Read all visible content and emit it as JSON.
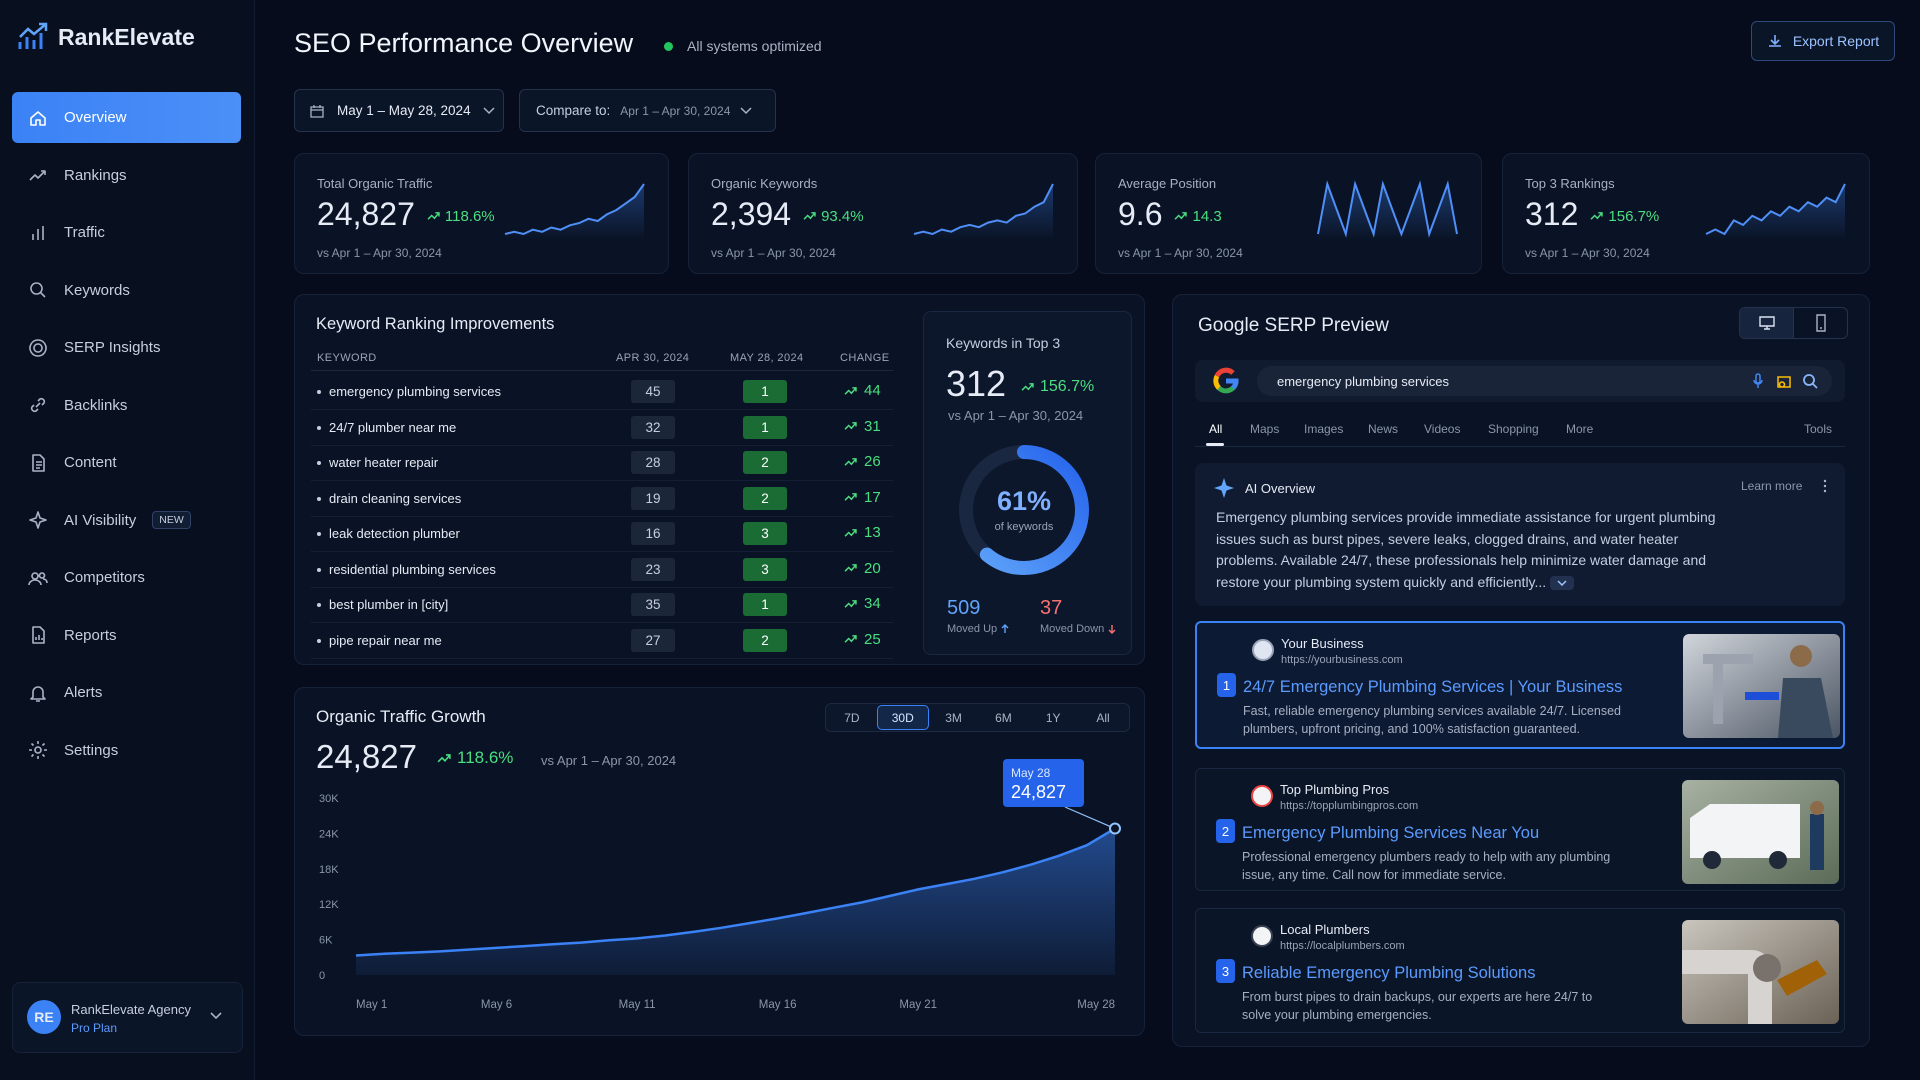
{
  "sidebar": {
    "brand": "RankElevate",
    "nav": [
      {
        "label": "Overview"
      },
      {
        "label": "Rankings"
      },
      {
        "label": "Traffic"
      },
      {
        "label": "Keywords"
      },
      {
        "label": "SERP Insights"
      },
      {
        "label": "Backlinks"
      },
      {
        "label": "Content"
      },
      {
        "label": "AI Visibility",
        "badge": "NEW"
      },
      {
        "label": "Competitors"
      },
      {
        "label": "Reports"
      },
      {
        "label": "Alerts"
      },
      {
        "label": "Settings"
      }
    ],
    "account": {
      "initials": "RE",
      "name": "RankElevate Agency",
      "plan": "Pro Plan"
    }
  },
  "header": {
    "title": "SEO Performance Overview",
    "status": "All systems optimized",
    "export": "Export Report"
  },
  "filters": {
    "date_range": "May 1 – May 28, 2024",
    "compare_label": "Compare to:",
    "compare_range": "Apr 1 – Apr 30, 2024"
  },
  "kpis": [
    {
      "title": "Total Organic Traffic",
      "value": "24,827",
      "change": "118.6%",
      "compare": "vs Apr 1 – Apr 30, 2024",
      "trend": [
        10,
        11,
        10,
        12,
        11,
        13,
        12,
        14,
        15,
        17,
        16,
        19,
        21,
        24,
        27,
        33
      ]
    },
    {
      "title": "Organic Keywords",
      "value": "2,394",
      "change": "93.4%",
      "compare": "vs Apr 1 – Apr 30, 2024",
      "trend": [
        8,
        9,
        8,
        10,
        9,
        11,
        12,
        11,
        13,
        14,
        13,
        16,
        17,
        20,
        22,
        30
      ]
    },
    {
      "title": "Average Position",
      "value": "9.6",
      "change": "14.3",
      "compare": "vs Apr 1 – Apr 30, 2024",
      "trend": [
        10,
        12,
        11,
        10,
        12,
        11,
        10,
        12,
        11,
        10,
        11,
        12,
        10,
        11,
        12,
        10
      ]
    },
    {
      "title": "Top 3 Rankings",
      "value": "312",
      "change": "156.7%",
      "compare": "vs Apr 1 – Apr 30, 2024",
      "trend": [
        8,
        9,
        8,
        11,
        10,
        12,
        11,
        13,
        12,
        14,
        13,
        15,
        14,
        16,
        15,
        19
      ]
    }
  ],
  "keyword_table": {
    "title": "Keyword Ranking Improvements",
    "columns": [
      "KEYWORD",
      "APR 30, 2024",
      "MAY 28, 2024",
      "CHANGE"
    ],
    "rows": [
      [
        "emergency plumbing services",
        45,
        1,
        44
      ],
      [
        "24/7 plumber near me",
        32,
        1,
        31
      ],
      [
        "water heater repair",
        28,
        2,
        26
      ],
      [
        "drain cleaning services",
        19,
        2,
        17
      ],
      [
        "leak detection plumber",
        16,
        3,
        13
      ],
      [
        "residential plumbing services",
        23,
        3,
        20
      ],
      [
        "best plumber in [city]",
        35,
        1,
        34
      ],
      [
        "pipe repair near me",
        27,
        2,
        25
      ]
    ]
  },
  "top3_card": {
    "title": "Keywords in Top 3",
    "value": "312",
    "change": "156.7%",
    "compare": "vs Apr 1 – Apr 30, 2024",
    "donut": {
      "value": 61,
      "label": "61%",
      "caption": "of keywords"
    },
    "moved_up": {
      "value": "509",
      "label": "Moved Up"
    },
    "moved_down": {
      "value": "37",
      "label": "Moved Down"
    }
  },
  "chart_data": {
    "type": "area",
    "title": "Organic Traffic Growth",
    "total": "24,827",
    "change": "118.6%",
    "compare": "vs Apr 1 – Apr 30, 2024",
    "ranges": [
      "7D",
      "30D",
      "3M",
      "6M",
      "1Y",
      "All"
    ],
    "active_range": "30D",
    "categories": [
      "May 1",
      null,
      null,
      null,
      null,
      "May 6",
      null,
      null,
      null,
      null,
      "May 11",
      null,
      null,
      null,
      null,
      "May 16",
      null,
      null,
      null,
      null,
      "May 21",
      null,
      null,
      null,
      null,
      null,
      null,
      "May 28"
    ],
    "values": [
      3300,
      3600,
      3800,
      4000,
      4300,
      4600,
      4900,
      5200,
      5500,
      5900,
      6200,
      6700,
      7300,
      8000,
      8800,
      9600,
      10500,
      11400,
      12300,
      13400,
      14500,
      15400,
      16300,
      17400,
      18700,
      20200,
      22000,
      24827
    ],
    "color": "#3b82f6",
    "ylim": [
      0,
      30000
    ],
    "yticks": [
      0,
      {
        "value": 6000,
        "label": "6K"
      },
      {
        "value": 12000,
        "label": "12K"
      },
      {
        "value": 18000,
        "label": "18K"
      },
      {
        "value": 24000,
        "label": "24K"
      },
      {
        "value": 30000,
        "label": "30K"
      }
    ],
    "tooltip": {
      "label": "May 28",
      "value": "24,827"
    }
  },
  "serp": {
    "title": "Google SERP Preview",
    "query": "emergency plumbing services",
    "tabs": [
      "All",
      "Maps",
      "Images",
      "News",
      "Videos",
      "Shopping",
      "More"
    ],
    "tools": "Tools",
    "ai_overview": {
      "title": "AI Overview",
      "learn_more": "Learn more",
      "text": "Emergency plumbing services provide immediate assistance for urgent plumbing issues such as burst pipes, severe leaks, clogged drains, and water heater problems. Available 24/7, these professionals help minimize water damage and restore your plumbing system quickly and efficiently..."
    },
    "results": [
      {
        "rank": 1,
        "site": "Your Business",
        "url": "https://yourbusiness.com",
        "title": "24/7 Emergency Plumbing Services | Your Business",
        "description": "Fast, reliable emergency plumbing services available 24/7. Licensed plumbers, upfront pricing, and 100% satisfaction guaranteed."
      },
      {
        "rank": 2,
        "site": "Top Plumbing Pros",
        "url": "https://topplumbingpros.com",
        "title": "Emergency Plumbing Services Near You",
        "description": "Professional emergency plumbers ready to help with any plumbing issue, any time. Call now for immediate service."
      },
      {
        "rank": 3,
        "site": "Local Plumbers",
        "url": "https://localplumbers.com",
        "title": "Reliable Emergency Plumbing Solutions",
        "description": "From burst pipes to drain backups, our experts are here 24/7 to solve your plumbing emergencies."
      }
    ]
  }
}
